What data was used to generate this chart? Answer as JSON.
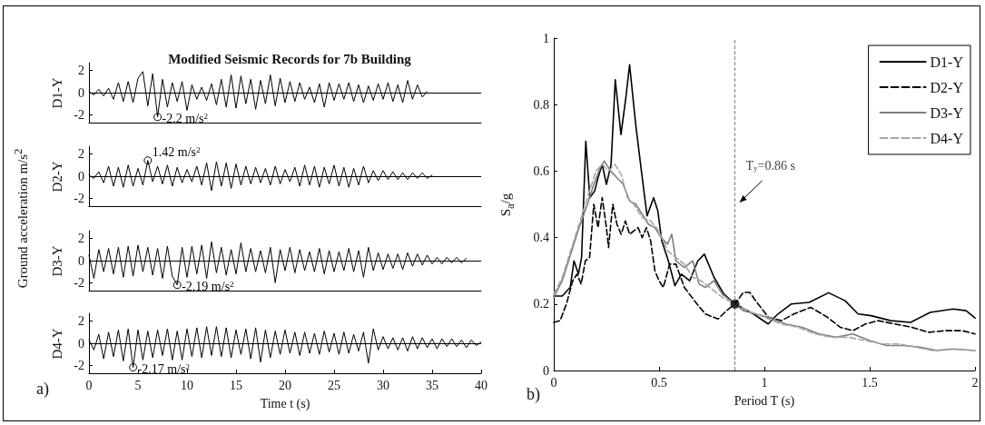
{
  "chart_data": [
    {
      "type": "line",
      "title": "Modified Seismic Records for 7b Building",
      "ylabel": "D1-Y",
      "xlim": [
        0,
        40
      ],
      "xticks": [
        0,
        5,
        10,
        15,
        20,
        25,
        30,
        35,
        40
      ],
      "ylim": [
        -2.7,
        2.7
      ],
      "yticks": [
        -2,
        0,
        2
      ],
      "tick_labels": "y",
      "grid": false,
      "legend": false,
      "x": [
        0,
        0.5,
        1,
        1.5,
        2,
        2.5,
        3,
        3.5,
        4,
        4.5,
        5,
        5.5,
        6,
        6.5,
        7,
        7.5,
        8,
        8.5,
        9,
        9.5,
        10,
        10.5,
        11,
        11.5,
        12,
        12.5,
        13,
        13.5,
        14,
        14.5,
        15,
        15.5,
        16,
        16.5,
        17,
        17.5,
        18,
        18.5,
        19,
        19.5,
        20,
        20.5,
        21,
        21.5,
        22,
        22.5,
        23,
        23.5,
        24,
        24.5,
        25,
        25.5,
        26,
        26.5,
        27,
        27.5,
        28,
        28.5,
        29,
        29.5,
        30,
        30.5,
        31,
        31.5,
        32,
        32.5,
        33,
        33.5,
        34,
        34.5
      ],
      "series": [
        {
          "color": "#000000",
          "values": [
            0.1,
            -0.2,
            0.3,
            -0.3,
            0.4,
            -0.6,
            0.9,
            -0.8,
            1.0,
            -0.9,
            1.3,
            1.9,
            -1.2,
            1.7,
            -2.2,
            1.2,
            -1.3,
            0.9,
            -0.8,
            1.0,
            -1.6,
            0.7,
            -0.6,
            0.5,
            -0.7,
            0.8,
            -1.1,
            1.2,
            -1.3,
            1.6,
            -1.4,
            1.5,
            -1.0,
            1.2,
            -1.5,
            1.1,
            -1.0,
            1.6,
            -1.2,
            1.3,
            -0.9,
            1.0,
            -0.8,
            0.9,
            -0.6,
            0.5,
            -0.9,
            0.8,
            -1.3,
            0.9,
            -0.7,
            0.8,
            -0.6,
            0.9,
            -0.8,
            0.7,
            -0.9,
            0.6,
            -0.7,
            0.8,
            -0.6,
            0.9,
            -0.8,
            0.7,
            -0.9,
            1.1,
            -0.6,
            0.7,
            -0.4,
            0.1
          ]
        }
      ],
      "ref_lines": [
        {
          "axis": "y",
          "value": 0,
          "color": "#000000"
        }
      ],
      "annotations": [
        "Ground acceleration m/s$^{2}$",
        {
          "text": "-2.2 m/s$^{2}$",
          "x": 7,
          "y": -2.2
        }
      ]
    },
    {
      "type": "line",
      "ylabel": "D2-Y",
      "xlim": [
        0,
        40
      ],
      "xticks": [
        0,
        5,
        10,
        15,
        20,
        25,
        30,
        35,
        40
      ],
      "ylim": [
        -2.7,
        2.7
      ],
      "yticks": [
        -2,
        0,
        2
      ],
      "tick_labels": "y",
      "grid": false,
      "legend": false,
      "x": [
        0,
        0.5,
        1,
        1.5,
        2,
        2.5,
        3,
        3.5,
        4,
        4.5,
        5,
        5.5,
        6,
        6.5,
        7,
        7.5,
        8,
        8.5,
        9,
        9.5,
        10,
        10.5,
        11,
        11.5,
        12,
        12.5,
        13,
        13.5,
        14,
        14.5,
        15,
        15.5,
        16,
        16.5,
        17,
        17.5,
        18,
        18.5,
        19,
        19.5,
        20,
        20.5,
        21,
        21.5,
        22,
        22.5,
        23,
        23.5,
        24,
        24.5,
        25,
        25.5,
        26,
        26.5,
        27,
        27.5,
        28,
        28.5,
        29,
        29.5,
        30,
        30.5,
        31,
        31.5,
        32,
        32.5,
        33,
        33.5,
        34,
        34.5,
        35
      ],
      "series": [
        {
          "color": "#000000",
          "values": [
            0.1,
            -0.2,
            0.4,
            -0.6,
            0.9,
            -0.9,
            0.8,
            -1.0,
            1.0,
            -0.9,
            0.7,
            -0.8,
            1.42,
            -0.5,
            0.9,
            -0.7,
            1.0,
            -0.9,
            0.8,
            -0.6,
            0.6,
            -0.5,
            0.9,
            -0.8,
            1.2,
            -1.3,
            1.3,
            -0.9,
            1.2,
            -1.1,
            1.1,
            -0.8,
            0.9,
            -0.7,
            0.8,
            -0.6,
            0.7,
            -0.8,
            0.9,
            -0.7,
            0.6,
            -0.5,
            0.8,
            -0.9,
            1.0,
            -0.8,
            0.9,
            -1.0,
            0.8,
            -0.7,
            1.0,
            -0.9,
            0.8,
            -1.0,
            0.7,
            -0.8,
            0.9,
            -0.6,
            0.5,
            -0.4,
            0.5,
            -0.3,
            0.4,
            -0.3,
            0.3,
            -0.3,
            0.3,
            -0.2,
            0.3,
            -0.2,
            0.1
          ]
        }
      ],
      "ref_lines": [
        {
          "axis": "y",
          "value": 0,
          "color": "#000000"
        }
      ],
      "annotations": [
        {
          "text": "1.42 m/s$^{2}$",
          "x": 6,
          "y": 1.42
        }
      ]
    },
    {
      "type": "line",
      "ylabel": "D3-Y",
      "xlim": [
        0,
        40
      ],
      "xticks": [
        0,
        5,
        10,
        15,
        20,
        25,
        30,
        35,
        40
      ],
      "ylim": [
        -2.7,
        2.7
      ],
      "yticks": [
        -2,
        0,
        2
      ],
      "tick_labels": "y",
      "grid": false,
      "legend": false,
      "x": [
        0,
        0.5,
        1,
        1.5,
        2,
        2.5,
        3,
        3.5,
        4,
        4.5,
        5,
        5.5,
        6,
        6.5,
        7,
        7.5,
        8,
        8.5,
        9,
        9.5,
        10,
        10.5,
        11,
        11.5,
        12,
        12.5,
        13,
        13.5,
        14,
        14.5,
        15,
        15.5,
        16,
        16.5,
        17,
        17.5,
        18,
        18.5,
        19,
        19.5,
        20,
        20.5,
        21,
        21.5,
        22,
        22.5,
        23,
        23.5,
        24,
        24.5,
        25,
        25.5,
        26,
        26.5,
        27,
        27.5,
        28,
        28.5,
        29,
        29.5,
        30,
        30.5,
        31,
        31.5,
        32,
        32.5,
        33,
        33.5,
        34,
        34.5,
        35,
        35.5,
        36,
        36.5,
        37,
        37.5,
        38,
        38.5
      ],
      "series": [
        {
          "color": "#000000",
          "values": [
            0.5,
            -1.6,
            1.0,
            -1.0,
            1.1,
            -1.2,
            1.2,
            -1.5,
            1.3,
            -1.4,
            1.4,
            -1.0,
            1.2,
            -1.3,
            1.1,
            -1.6,
            1.3,
            -1.4,
            -2.19,
            1.2,
            -1.5,
            1.3,
            -1.2,
            1.4,
            -1.6,
            1.7,
            -1.1,
            1.2,
            -1.3,
            1.0,
            -1.2,
            1.6,
            -1.0,
            1.1,
            -1.0,
            0.9,
            -1.1,
            1.2,
            -2.0,
            1.0,
            -0.9,
            1.2,
            -1.1,
            1.0,
            -0.9,
            0.8,
            -1.0,
            1.1,
            -1.2,
            0.9,
            -1.0,
            0.8,
            -0.9,
            1.1,
            -1.0,
            0.9,
            -1.5,
            1.2,
            -0.9,
            0.7,
            -0.8,
            0.6,
            -0.7,
            0.6,
            -0.8,
            0.7,
            -0.5,
            0.6,
            -0.4,
            0.5,
            -0.3,
            0.3,
            -0.3,
            0.3,
            -0.2,
            0.3,
            -0.2,
            0.2
          ]
        }
      ],
      "ref_lines": [
        {
          "axis": "y",
          "value": 0,
          "color": "#000000"
        }
      ],
      "annotations": [
        {
          "text": "-2.19 m/s$^{2}$",
          "x": 9,
          "y": -2.19
        }
      ]
    },
    {
      "type": "line",
      "ylabel": "D4-Y",
      "xlabel": "Time t (s)",
      "xlim": [
        0,
        40
      ],
      "xticks": [
        0,
        5,
        10,
        15,
        20,
        25,
        30,
        35,
        40
      ],
      "ylim": [
        -2.7,
        2.7
      ],
      "yticks": [
        -2,
        0,
        2
      ],
      "grid": false,
      "legend": false,
      "x": [
        0,
        0.5,
        1,
        1.5,
        2,
        2.5,
        3,
        3.5,
        4,
        4.5,
        5,
        5.5,
        6,
        6.5,
        7,
        7.5,
        8,
        8.5,
        9,
        9.5,
        10,
        10.5,
        11,
        11.5,
        12,
        12.5,
        13,
        13.5,
        14,
        14.5,
        15,
        15.5,
        16,
        16.5,
        17,
        17.5,
        18,
        18.5,
        19,
        19.5,
        20,
        20.5,
        21,
        21.5,
        22,
        22.5,
        23,
        23.5,
        24,
        24.5,
        25,
        25.5,
        26,
        26.5,
        27,
        27.5,
        28,
        28.5,
        29,
        29.5,
        30,
        30.5,
        31,
        31.5,
        32,
        32.5,
        33,
        33.5,
        34,
        34.5,
        35,
        35.5,
        36,
        36.5,
        37,
        37.5,
        38,
        38.5,
        39,
        39.5,
        40
      ],
      "series": [
        {
          "color": "#000000",
          "values": [
            0.3,
            -0.6,
            0.8,
            -1.4,
            1.0,
            -1.2,
            1.2,
            -1.6,
            1.3,
            -2.17,
            1.2,
            -1.5,
            1.1,
            -1.3,
            1.2,
            -1.1,
            1.3,
            -1.5,
            1.1,
            -1.5,
            1.3,
            -1.2,
            1.4,
            -1.3,
            1.5,
            -1.1,
            1.5,
            -1.2,
            1.4,
            -1.3,
            1.2,
            -1.0,
            1.3,
            -1.4,
            1.4,
            -1.7,
            1.2,
            -1.3,
            1.1,
            -1.0,
            1.2,
            -0.9,
            1.0,
            -1.1,
            1.0,
            -0.9,
            0.9,
            -1.0,
            1.1,
            -0.8,
            0.9,
            -1.0,
            1.0,
            -0.9,
            0.8,
            -0.7,
            1.0,
            -1.8,
            1.3,
            -0.6,
            0.6,
            -0.5,
            0.5,
            -0.6,
            0.5,
            -0.7,
            0.6,
            -0.5,
            0.5,
            -0.4,
            0.4,
            -0.5,
            0.4,
            -0.3,
            0.4,
            -0.3,
            0.3,
            -0.4,
            0.3,
            -0.2,
            0.1
          ]
        }
      ],
      "ref_lines": [
        {
          "axis": "y",
          "value": 0,
          "color": "#000000"
        }
      ],
      "annotations": [
        "a)",
        {
          "text": "-2.17 m/s$^{2}$",
          "x": 4.5,
          "y": -2.17
        }
      ]
    },
    {
      "type": "line",
      "xlabel": "Period T (s)",
      "ylabel": "S$_{a}$/g",
      "xlim": [
        0,
        2
      ],
      "xticks": [
        0,
        0.5,
        1,
        1.5,
        2
      ],
      "ylim": [
        0,
        1
      ],
      "yticks": [
        0,
        0.2,
        0.4,
        0.6,
        0.8,
        1
      ],
      "grid": false,
      "legend": "top right",
      "series": [
        {
          "name": "D1-Y",
          "color": "#000000",
          "line_style": "solid",
          "x": [
            0,
            0.04,
            0.078,
            0.096,
            0.117,
            0.132,
            0.152,
            0.171,
            0.194,
            0.21,
            0.23,
            0.25,
            0.272,
            0.292,
            0.319,
            0.342,
            0.36,
            0.389,
            0.42,
            0.443,
            0.474,
            0.494,
            0.513,
            0.544,
            0.575,
            0.606,
            0.645,
            0.684,
            0.715,
            0.761,
            0.808,
            0.862,
            0.948,
            1.018,
            1.064,
            1.127,
            1.212,
            1.305,
            1.383,
            1.445,
            1.507,
            1.6,
            1.694,
            1.787,
            1.896,
            1.958,
            2
          ],
          "values": [
            0.224,
            0.224,
            0.25,
            0.33,
            0.29,
            0.34,
            0.69,
            0.52,
            0.54,
            0.58,
            0.62,
            0.56,
            0.62,
            0.875,
            0.71,
            0.82,
            0.92,
            0.74,
            0.58,
            0.465,
            0.52,
            0.48,
            0.39,
            0.33,
            0.255,
            0.29,
            0.27,
            0.33,
            0.35,
            0.28,
            0.23,
            0.2,
            0.17,
            0.14,
            0.17,
            0.2,
            0.205,
            0.234,
            0.21,
            0.17,
            0.165,
            0.15,
            0.145,
            0.175,
            0.185,
            0.18,
            0.158
          ]
        },
        {
          "name": "D2-Y",
          "color": "#000000",
          "line_style": "dashed",
          "x": [
            0,
            0.03,
            0.06,
            0.09,
            0.11,
            0.13,
            0.15,
            0.17,
            0.19,
            0.21,
            0.23,
            0.25,
            0.26,
            0.28,
            0.3,
            0.32,
            0.34,
            0.36,
            0.4,
            0.42,
            0.44,
            0.46,
            0.48,
            0.5,
            0.52,
            0.55,
            0.58,
            0.62,
            0.68,
            0.72,
            0.78,
            0.82,
            0.86,
            0.9,
            0.93,
            0.97,
            1.02,
            1.08,
            1.14,
            1.22,
            1.3,
            1.36,
            1.42,
            1.48,
            1.54,
            1.62,
            1.7,
            1.78,
            1.86,
            1.94,
            2
          ],
          "values": [
            0.145,
            0.15,
            0.2,
            0.27,
            0.29,
            0.26,
            0.33,
            0.34,
            0.5,
            0.43,
            0.52,
            0.43,
            0.37,
            0.5,
            0.44,
            0.41,
            0.45,
            0.41,
            0.43,
            0.4,
            0.43,
            0.39,
            0.3,
            0.27,
            0.25,
            0.32,
            0.32,
            0.25,
            0.2,
            0.17,
            0.155,
            0.18,
            0.2,
            0.235,
            0.235,
            0.2,
            0.16,
            0.15,
            0.17,
            0.19,
            0.16,
            0.13,
            0.12,
            0.14,
            0.15,
            0.14,
            0.13,
            0.115,
            0.12,
            0.12,
            0.11
          ]
        },
        {
          "name": "D3-Y",
          "color": "#7f7f7f",
          "line_style": "solid",
          "x": [
            0,
            0.04,
            0.08,
            0.12,
            0.16,
            0.19,
            0.22,
            0.24,
            0.27,
            0.3,
            0.33,
            0.36,
            0.39,
            0.42,
            0.45,
            0.48,
            0.51,
            0.54,
            0.56,
            0.58,
            0.62,
            0.66,
            0.69,
            0.72,
            0.76,
            0.8,
            0.86,
            0.9,
            0.96,
            1.02,
            1.1,
            1.18,
            1.26,
            1.34,
            1.42,
            1.5,
            1.58,
            1.66,
            1.74,
            1.82,
            1.9,
            2
          ],
          "values": [
            0.22,
            0.27,
            0.35,
            0.43,
            0.5,
            0.56,
            0.61,
            0.63,
            0.6,
            0.58,
            0.56,
            0.51,
            0.5,
            0.47,
            0.44,
            0.43,
            0.4,
            0.38,
            0.41,
            0.33,
            0.31,
            0.33,
            0.26,
            0.25,
            0.27,
            0.23,
            0.2,
            0.18,
            0.17,
            0.16,
            0.14,
            0.13,
            0.11,
            0.1,
            0.11,
            0.09,
            0.075,
            0.075,
            0.07,
            0.06,
            0.065,
            0.06
          ]
        },
        {
          "name": "D4-Y",
          "color": "#a6a6a6",
          "line_style": "dashed",
          "x": [
            0,
            0.04,
            0.08,
            0.12,
            0.16,
            0.2,
            0.23,
            0.26,
            0.29,
            0.32,
            0.35,
            0.38,
            0.42,
            0.46,
            0.5,
            0.54,
            0.58,
            0.62,
            0.66,
            0.7,
            0.74,
            0.8,
            0.86,
            0.92,
            1,
            1.08,
            1.16,
            1.24,
            1.32,
            1.4,
            1.48,
            1.56,
            1.64,
            1.72,
            1.8,
            1.88,
            2
          ],
          "values": [
            0.23,
            0.28,
            0.36,
            0.44,
            0.52,
            0.6,
            0.62,
            0.6,
            0.62,
            0.59,
            0.52,
            0.5,
            0.46,
            0.45,
            0.42,
            0.36,
            0.34,
            0.32,
            0.28,
            0.27,
            0.25,
            0.22,
            0.2,
            0.18,
            0.16,
            0.14,
            0.13,
            0.11,
            0.1,
            0.1,
            0.09,
            0.08,
            0.08,
            0.07,
            0.06,
            0.065,
            0.06
          ]
        },
        {
          "type": "scatter",
          "color": "#000000",
          "x": [
            0.86
          ],
          "values": [
            0.2
          ]
        }
      ],
      "ref_lines": [
        {
          "axis": "x",
          "value": 0.86,
          "label": "T$_{y}$=0.86 s",
          "color": "#808080",
          "line_style": "dashed"
        }
      ],
      "annotations": [
        "b)"
      ]
    }
  ]
}
